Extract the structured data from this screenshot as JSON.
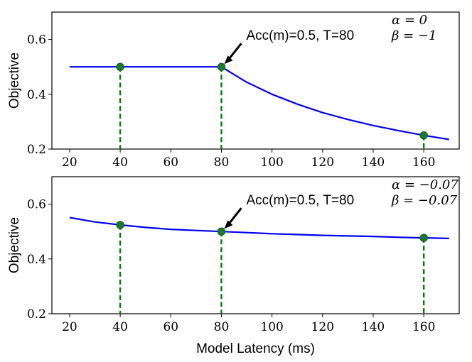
{
  "chart_data": [
    {
      "type": "line",
      "ylabel": "Objective",
      "xlabel": "",
      "xlim": [
        13,
        174
      ],
      "ylim": [
        0.2,
        0.7
      ],
      "xticks": [
        20,
        40,
        60,
        80,
        100,
        120,
        140,
        160
      ],
      "yticks": [
        0.2,
        0.4,
        0.6
      ],
      "xtick_labels": [
        "20",
        "40",
        "60",
        "80",
        "100",
        "120",
        "140",
        "160"
      ],
      "ytick_labels": [
        "0.2",
        "0.4",
        "0.6"
      ],
      "grid": false,
      "series": [
        {
          "color": "#0000ee",
          "x": [
            20,
            30,
            40,
            50,
            60,
            70,
            80,
            90,
            100,
            110,
            120,
            130,
            140,
            150,
            160,
            170
          ],
          "y": [
            0.5,
            0.5,
            0.5,
            0.5,
            0.5,
            0.5,
            0.5,
            0.444,
            0.4,
            0.364,
            0.333,
            0.308,
            0.286,
            0.267,
            0.25,
            0.235
          ]
        }
      ],
      "markers": [
        {
          "x": 40,
          "y": 0.5
        },
        {
          "x": 80,
          "y": 0.5
        },
        {
          "x": 160,
          "y": 0.25
        }
      ],
      "marker_color": "#1a7a2e",
      "dash_color": "#008000",
      "annotation": {
        "text": "Acc(m)=0.5, T=80",
        "x": 80,
        "y": 0.5
      },
      "params": [
        "α = 0",
        "β = −1"
      ]
    },
    {
      "type": "line",
      "ylabel": "Objective",
      "xlabel": "Model Latency (ms)",
      "xlim": [
        13,
        174
      ],
      "ylim": [
        0.2,
        0.7
      ],
      "xticks": [
        20,
        40,
        60,
        80,
        100,
        120,
        140,
        160
      ],
      "yticks": [
        0.2,
        0.4,
        0.6
      ],
      "xtick_labels": [
        "20",
        "40",
        "60",
        "80",
        "100",
        "120",
        "140",
        "160"
      ],
      "ytick_labels": [
        "0.2",
        "0.4",
        "0.6"
      ],
      "grid": false,
      "series": [
        {
          "color": "#0000ee",
          "x": [
            20,
            30,
            40,
            50,
            60,
            70,
            80,
            90,
            100,
            110,
            120,
            130,
            140,
            150,
            160,
            170
          ],
          "y": [
            0.551,
            0.535,
            0.524,
            0.515,
            0.508,
            0.504,
            0.5,
            0.496,
            0.492,
            0.489,
            0.486,
            0.484,
            0.482,
            0.479,
            0.477,
            0.475
          ]
        }
      ],
      "markers": [
        {
          "x": 40,
          "y": 0.524
        },
        {
          "x": 80,
          "y": 0.5
        },
        {
          "x": 160,
          "y": 0.477
        }
      ],
      "marker_color": "#1a7a2e",
      "dash_color": "#008000",
      "annotation": {
        "text": "Acc(m)=0.5, T=80",
        "x": 80,
        "y": 0.5
      },
      "params": [
        "α = −0.07",
        "β = −0.07"
      ]
    }
  ]
}
